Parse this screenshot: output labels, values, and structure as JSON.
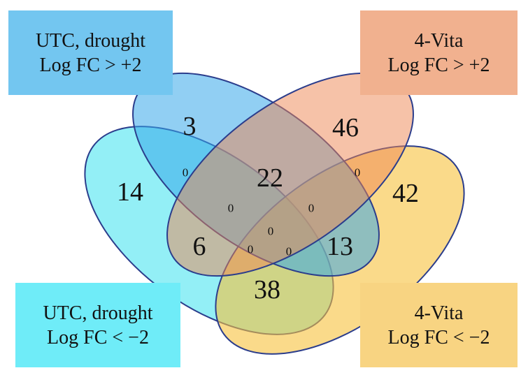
{
  "sets": [
    {
      "id": "a",
      "line1": "UTC, drought",
      "line2": "Log FC > +2",
      "color": "#37a7ea"
    },
    {
      "id": "b",
      "line1": "4-Vita",
      "line2": "Log FC > +2",
      "color": "#ed8552"
    },
    {
      "id": "c",
      "line1": "UTC, drought",
      "line2": "Log FC < −2",
      "color": "#28e0ee"
    },
    {
      "id": "d",
      "line1": "4-Vita",
      "line2": "Log FC < −2",
      "color": "#f7c23c"
    }
  ],
  "regions": {
    "a_only": "3",
    "b_only": "46",
    "c_only": "14",
    "d_only": "42",
    "a_b": "22",
    "a_c": "0",
    "b_d": "0",
    "a_b_c": "0",
    "a_b_d": "0",
    "a_c_d": "6",
    "b_c_d": "13",
    "c_d": "38",
    "all_four": "0",
    "a_c_d_lower": "0",
    "b_c_d_lower": "0"
  }
}
